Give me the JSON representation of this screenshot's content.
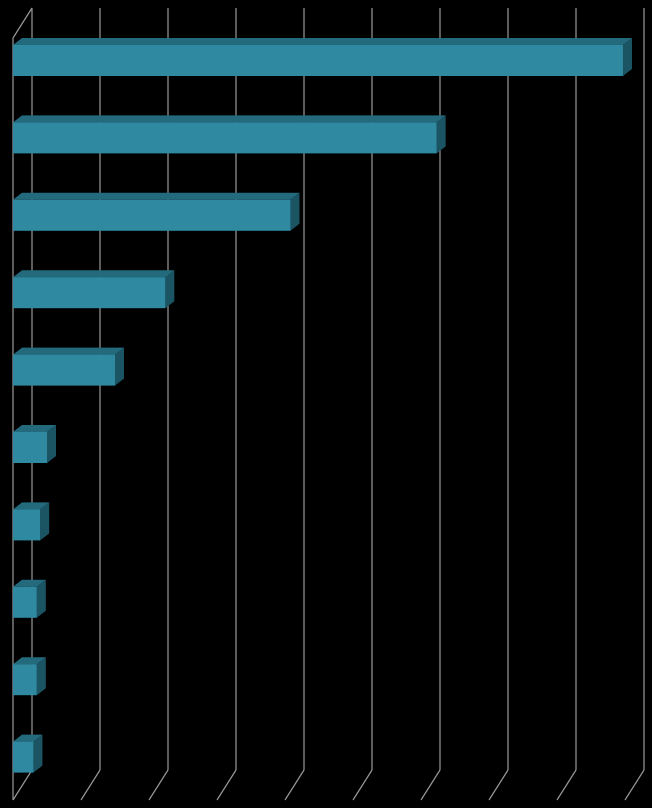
{
  "chart_data": {
    "type": "bar",
    "orientation": "horizontal",
    "style": "3d",
    "title": "",
    "xlabel": "",
    "ylabel": "",
    "categories": [
      "",
      "",
      "",
      "",
      "",
      "",
      "",
      "",
      "",
      ""
    ],
    "values": [
      8.97,
      6.23,
      4.08,
      2.24,
      1.5,
      0.5,
      0.4,
      0.35,
      0.35,
      0.3
    ],
    "xlim": [
      0,
      9
    ],
    "grid": true,
    "legend": "none",
    "colors": {
      "background": "#000000",
      "bar_front": "#2f8aa1",
      "bar_top": "#236a7d",
      "bar_side": "#1b5564",
      "grid": "#9a9a9a"
    }
  }
}
